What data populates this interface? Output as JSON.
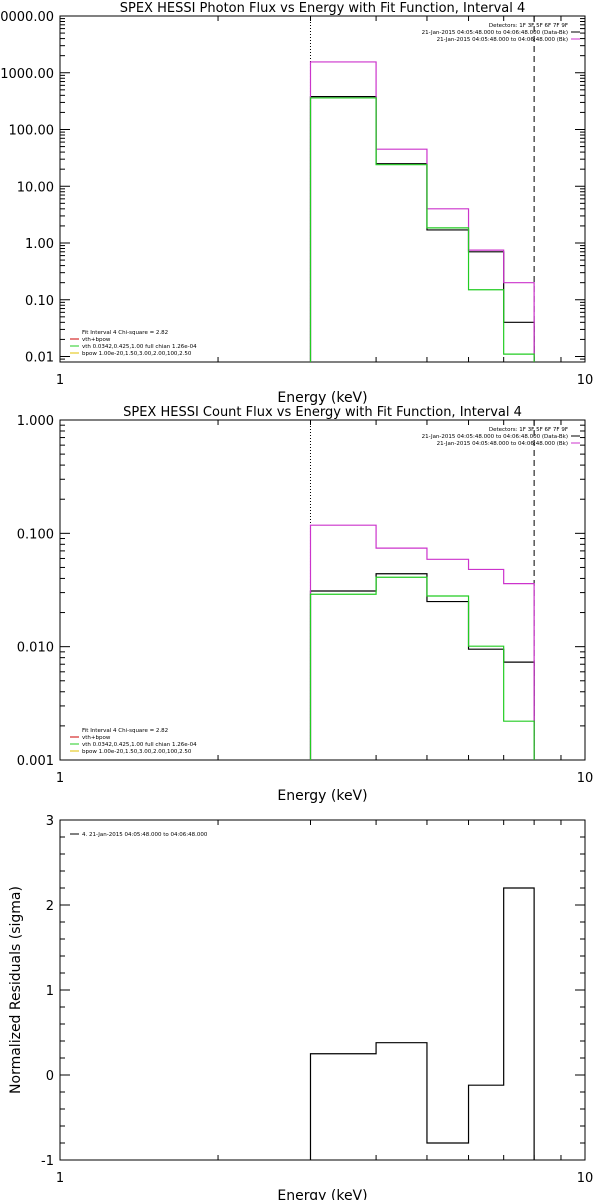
{
  "colors": {
    "data": "#000000",
    "model": "#cc33cc",
    "vth": "#22cc22",
    "bpow": "#e2c000",
    "axis": "#000000",
    "legend_red": "#cc0000"
  },
  "chart_data": [
    {
      "type": "line",
      "title": "SPEX HESSI Photon Flux vs Energy with Fit Function, Interval 4",
      "xlabel": "Energy (keV)",
      "ylabel": "",
      "xscale": "log",
      "yscale": "log",
      "xlim": [
        1,
        10
      ],
      "ylim": [
        0.008,
        10000
      ],
      "x_ticks": [
        "1",
        "10"
      ],
      "y_ticks": [
        {
          "value": 10000,
          "label": "10000.00"
        },
        {
          "value": 1000,
          "label": "1000.00"
        },
        {
          "value": 100,
          "label": "100.00"
        },
        {
          "value": 10,
          "label": "10.00"
        },
        {
          "value": 1,
          "label": "1.00"
        },
        {
          "value": 0.1,
          "label": "0.10"
        },
        {
          "value": 0.01,
          "label": "0.01"
        }
      ],
      "bin_edges": [
        3.0,
        4.0,
        5.0,
        6.0,
        7.0,
        8.0
      ],
      "vlines": [
        {
          "x": 3.0,
          "style": "dotted"
        },
        {
          "x": 8.0,
          "style": "dashed"
        }
      ],
      "series": [
        {
          "color_key": "data",
          "values": [
            380,
            25,
            1.7,
            0.7,
            0.04
          ]
        },
        {
          "color_key": "model",
          "values": [
            1550,
            45,
            4.0,
            0.75,
            0.2
          ]
        },
        {
          "color_key": "vth",
          "values": [
            360,
            24,
            1.85,
            0.15,
            0.011
          ]
        }
      ],
      "legend_top_right": [
        {
          "text": "Detectors: 1F 3F 5F 6F 7F 9F",
          "color_key": ""
        },
        {
          "text": "21-Jan-2015 04:05:48.000 to 04:06:48.000 (Data-Bk)",
          "color_key": "data"
        },
        {
          "text": "21-Jan-2015 04:05:48.000 to 04:06:48.000 (Bk)",
          "color_key": "model"
        }
      ],
      "legend_bottom_left": [
        {
          "text": "Fit Interval  4   Chi-square = 2.82",
          "color_key": ""
        },
        {
          "text": "vth+bpow",
          "color_key": "legend_red"
        },
        {
          "text": "vth 0.0342,0.425,1.00  full chian 1.26e-04",
          "color_key": "vth"
        },
        {
          "text": "bpow 1.00e-20,1.50,3.00,2.00,100,2.50",
          "color_key": "bpow"
        }
      ]
    },
    {
      "type": "line",
      "title": "SPEX HESSI Count Flux vs Energy with Fit Function, Interval 4",
      "xlabel": "Energy (keV)",
      "ylabel": "",
      "xscale": "log",
      "yscale": "log",
      "xlim": [
        1,
        10
      ],
      "ylim": [
        0.001,
        1.0
      ],
      "x_ticks": [
        "1",
        "10"
      ],
      "y_ticks": [
        {
          "value": 1.0,
          "label": "1.000"
        },
        {
          "value": 0.1,
          "label": "0.100"
        },
        {
          "value": 0.01,
          "label": "0.010"
        },
        {
          "value": 0.001,
          "label": "0.001"
        }
      ],
      "bin_edges": [
        3.0,
        4.0,
        5.0,
        6.0,
        7.0,
        8.0
      ],
      "vlines": [
        {
          "x": 3.0,
          "style": "dotted"
        },
        {
          "x": 8.0,
          "style": "dashed"
        }
      ],
      "series": [
        {
          "color_key": "data",
          "values": [
            0.031,
            0.044,
            0.025,
            0.0095,
            0.0073
          ]
        },
        {
          "color_key": "model",
          "values": [
            0.118,
            0.074,
            0.059,
            0.048,
            0.036
          ]
        },
        {
          "color_key": "vth",
          "values": [
            0.029,
            0.041,
            0.028,
            0.0101,
            0.0022
          ]
        }
      ],
      "legend_top_right": [
        {
          "text": "Detectors: 1F 3F 5F 6F 7F 9F",
          "color_key": ""
        },
        {
          "text": "21-Jan-2015 04:05:48.000 to 04:06:48.000 (Data-Bk)",
          "color_key": "data"
        },
        {
          "text": "21-Jan-2015 04:05:48.000 to 04:06:48.000 (Bk)",
          "color_key": "model"
        }
      ],
      "legend_bottom_left": [
        {
          "text": "Fit Interval  4   Chi-square = 2.82",
          "color_key": ""
        },
        {
          "text": "vth+bpow",
          "color_key": "legend_red"
        },
        {
          "text": "vth 0.0342,0.425,1.00  full chian 1.26e-04",
          "color_key": "vth"
        },
        {
          "text": "bpow 1.00e-20,1.50,3.00,2.00,100,2.50",
          "color_key": "bpow"
        }
      ]
    },
    {
      "type": "line",
      "title": "",
      "xlabel": "Energy (keV)",
      "ylabel": "Normalized Residuals (sigma)",
      "xscale": "log",
      "yscale": "linear",
      "xlim": [
        1,
        10
      ],
      "ylim": [
        -1,
        3
      ],
      "x_ticks": [
        "1",
        "10"
      ],
      "y_ticks": [
        {
          "value": 3,
          "label": "3"
        },
        {
          "value": 2,
          "label": "2"
        },
        {
          "value": 1,
          "label": "1"
        },
        {
          "value": 0,
          "label": "0"
        },
        {
          "value": -1,
          "label": "-1"
        }
      ],
      "bin_edges": [
        3.0,
        4.0,
        5.0,
        6.0,
        7.0,
        8.0
      ],
      "vlines": [],
      "series": [
        {
          "color_key": "data",
          "values": [
            0.25,
            0.38,
            -0.8,
            -0.12,
            2.2
          ]
        }
      ],
      "legend_top_left": [
        {
          "text": "4. 21-Jan-2015 04:05:48.000 to 04:06:48.000",
          "color_key": "data"
        }
      ]
    }
  ]
}
